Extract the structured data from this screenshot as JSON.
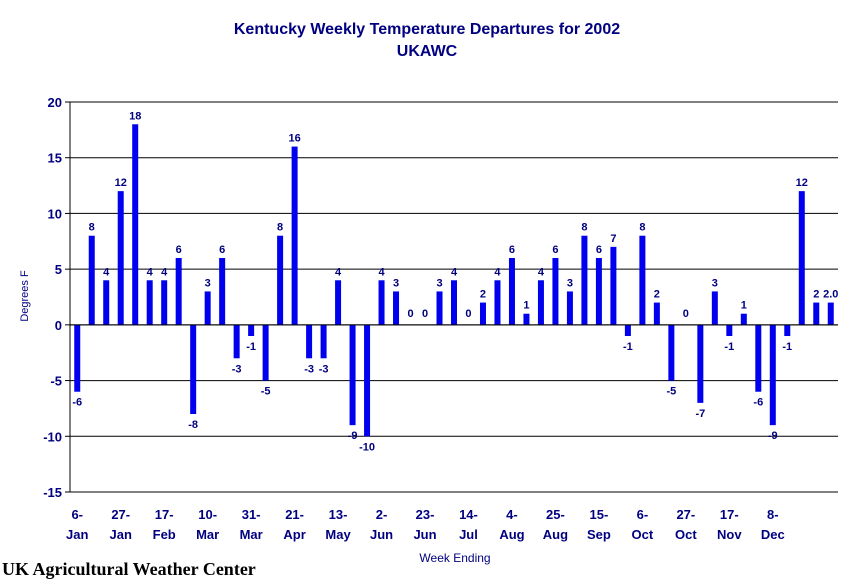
{
  "chart_data": {
    "type": "bar",
    "title": "Kentucky Weekly Temperature Departures for 2002",
    "subtitle": "UKAWC",
    "xlabel": "Week Ending",
    "ylabel": "Degrees F",
    "ylim": [
      -15,
      20
    ],
    "yticks": [
      -15,
      -10,
      -5,
      0,
      5,
      10,
      15,
      20
    ],
    "grid": true,
    "legend": "none",
    "bar_color": "#0000EE",
    "text_color": "#000080",
    "values": [
      -6,
      8,
      4,
      12,
      18,
      4,
      4,
      6,
      -8,
      3,
      6,
      -3,
      -1,
      -5,
      8,
      16,
      -3,
      -3,
      4,
      -9,
      -10,
      4,
      3,
      0,
      0,
      3,
      4,
      0,
      2,
      4,
      6,
      1,
      4,
      6,
      3,
      8,
      6,
      7,
      -1,
      8,
      2,
      -5,
      0,
      -7,
      3,
      -1,
      1,
      -6,
      -9,
      -1,
      12,
      2,
      2
    ],
    "value_labels": [
      "-6",
      "8",
      "4",
      "12",
      "18",
      "4",
      "4",
      "6",
      "-8",
      "3",
      "6",
      "-3",
      "-1",
      "-5",
      "8",
      "16",
      "-3",
      "-3",
      "4",
      "-9",
      "-10",
      "4",
      "3",
      "0",
      "0",
      "3",
      "4",
      "0",
      "2",
      "4",
      "6",
      "1",
      "4",
      "6",
      "3",
      "8",
      "6",
      "7",
      "-1",
      "8",
      "2",
      "-5",
      "0",
      "-7",
      "3",
      "-1",
      "1",
      "-6",
      "-9",
      "-1",
      "12",
      "2",
      "2.0"
    ],
    "x_ticks": [
      {
        "week": 0,
        "line1": "6-",
        "line2": "Jan"
      },
      {
        "week": 3,
        "line1": "27-",
        "line2": "Jan"
      },
      {
        "week": 6,
        "line1": "17-",
        "line2": "Feb"
      },
      {
        "week": 9,
        "line1": "10-",
        "line2": "Mar"
      },
      {
        "week": 12,
        "line1": "31-",
        "line2": "Mar"
      },
      {
        "week": 15,
        "line1": "21-",
        "line2": "Apr"
      },
      {
        "week": 18,
        "line1": "13-",
        "line2": "May"
      },
      {
        "week": 21,
        "line1": "2-",
        "line2": "Jun"
      },
      {
        "week": 24,
        "line1": "23-",
        "line2": "Jun"
      },
      {
        "week": 27,
        "line1": "14-",
        "line2": "Jul"
      },
      {
        "week": 30,
        "line1": "4-",
        "line2": "Aug"
      },
      {
        "week": 33,
        "line1": "25-",
        "line2": "Aug"
      },
      {
        "week": 36,
        "line1": "15-",
        "line2": "Sep"
      },
      {
        "week": 39,
        "line1": "6-",
        "line2": "Oct"
      },
      {
        "week": 42,
        "line1": "27-",
        "line2": "Oct"
      },
      {
        "week": 45,
        "line1": "17-",
        "line2": "Nov"
      },
      {
        "week": 48,
        "line1": "8-",
        "line2": "Dec"
      }
    ]
  },
  "footer": "UK Agricultural Weather Center"
}
